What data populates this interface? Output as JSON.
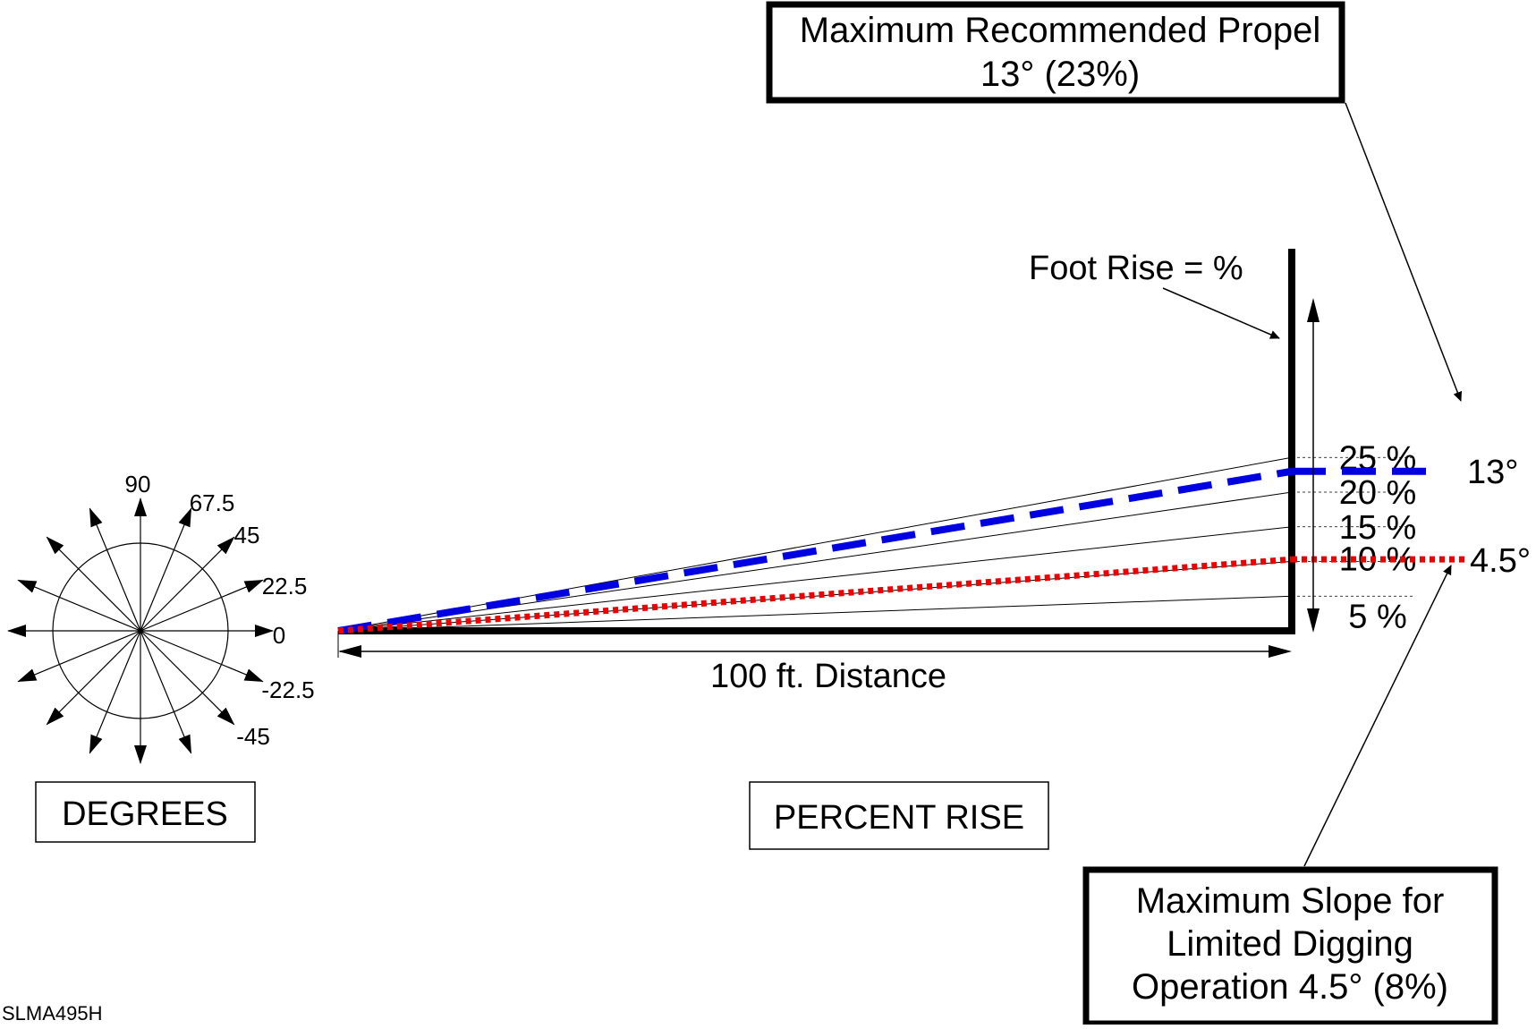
{
  "callouts": {
    "propel_line1": "Maximum Recommended Propel",
    "propel_line2": "13° (23%)",
    "digging_line1": "Maximum Slope for",
    "digging_line2": "Limited Digging",
    "digging_line3": "Operation 4.5° (8%)"
  },
  "labels": {
    "foot_rise": "Foot Rise = %",
    "distance": "100 ft. Distance",
    "degrees_box": "DEGREES",
    "percent_rise_box": "PERCENT RISE",
    "figure_code": "SLMA495H",
    "propel_end": "13°",
    "digging_end": "4.5°"
  },
  "compass": {
    "tick_labels": [
      {
        "text": "90",
        "angle": 90
      },
      {
        "text": "67.5",
        "angle": 67.5
      },
      {
        "text": "45",
        "angle": 45
      },
      {
        "text": "22.5",
        "angle": 22.5
      },
      {
        "text": "0",
        "angle": 0
      },
      {
        "text": "-22.5",
        "angle": -22.5
      },
      {
        "text": "-45",
        "angle": -45
      }
    ]
  },
  "slopes": {
    "percent_lines": [
      {
        "label": "25 %",
        "percent": 25
      },
      {
        "label": "20 %",
        "percent": 20
      },
      {
        "label": "15 %",
        "percent": 15
      },
      {
        "label": "10 %",
        "percent": 10
      },
      {
        "label": "5 %",
        "percent": 5
      }
    ],
    "propel": {
      "degrees": 13,
      "percent": 23,
      "color": "#0000e0",
      "style": "dashed"
    },
    "digging": {
      "degrees": 4.5,
      "percent": 8,
      "color": "#ee0000",
      "style": "dotted"
    }
  }
}
